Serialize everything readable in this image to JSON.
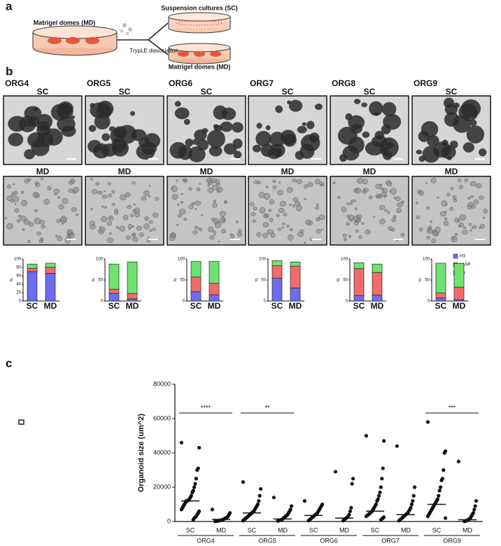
{
  "panel_a": {
    "label": "a",
    "source": "Matrigel domes (MD)",
    "step": "TrypLE dissociation",
    "targets": [
      "Suspension cultures (SC)",
      "Matrigel domes (MD)"
    ]
  },
  "panel_b": {
    "label": "b",
    "organoids": [
      {
        "name": "ORG4",
        "images": [
          "SC",
          "MD"
        ],
        "chart": {
          "type": "bar",
          "stacked": true,
          "ylabel": "%",
          "categories": [
            "SC",
            "MD"
          ],
          "ylim": [
            0,
            100
          ],
          "yticks": [
            0,
            20,
            40,
            60,
            80,
            100
          ],
          "series": [
            {
              "name": "HS",
              "color": "#6f6cf2",
              "values": [
                70,
                66
              ]
            },
            {
              "name": "LASP",
              "color": "#f26b6b",
              "values": [
                8,
                14
              ]
            },
            {
              "name": "BA",
              "color": "#6fe36f",
              "values": [
                10,
                10
              ]
            }
          ]
        }
      },
      {
        "name": "ORG5",
        "images": [
          "SC",
          "MD"
        ],
        "chart": {
          "type": "bar",
          "stacked": true,
          "ylabel": "%",
          "categories": [
            "SC",
            "MD"
          ],
          "ylim": [
            0,
            100
          ],
          "yticks": [
            0,
            50,
            100
          ],
          "series": [
            {
              "name": "HS",
              "color": "#6f6cf2",
              "values": [
                18,
                5
              ]
            },
            {
              "name": "LASP",
              "color": "#f26b6b",
              "values": [
                10,
                13
              ]
            },
            {
              "name": "BA",
              "color": "#6fe36f",
              "values": [
                60,
                75
              ]
            }
          ]
        }
      },
      {
        "name": "ORG6",
        "images": [
          "SC",
          "MD"
        ],
        "chart": {
          "type": "bar",
          "stacked": true,
          "ylabel": "%",
          "categories": [
            "SC",
            "MD"
          ],
          "ylim": [
            0,
            100
          ],
          "yticks": [
            0,
            50,
            100
          ],
          "series": [
            {
              "name": "HS",
              "color": "#6f6cf2",
              "values": [
                22,
                15
              ]
            },
            {
              "name": "LASP",
              "color": "#f26b6b",
              "values": [
                35,
                27
              ]
            },
            {
              "name": "BA",
              "color": "#6fe36f",
              "values": [
                37,
                52
              ]
            }
          ]
        }
      },
      {
        "name": "ORG7",
        "images": [
          "SC",
          "MD"
        ],
        "chart": {
          "type": "bar",
          "stacked": true,
          "ylabel": "%",
          "categories": [
            "SC",
            "MD"
          ],
          "ylim": [
            0,
            100
          ],
          "yticks": [
            0,
            50,
            100
          ],
          "series": [
            {
              "name": "HS",
              "color": "#6f6cf2",
              "values": [
                54,
                31
              ]
            },
            {
              "name": "LASP",
              "color": "#f26b6b",
              "values": [
                30,
                52
              ]
            },
            {
              "name": "BA",
              "color": "#6fe36f",
              "values": [
                12,
                10
              ]
            }
          ]
        }
      },
      {
        "name": "ORG8",
        "images": [
          "SC",
          "MD"
        ],
        "chart": {
          "type": "bar",
          "stacked": true,
          "ylabel": "%",
          "categories": [
            "SC",
            "MD"
          ],
          "ylim": [
            0,
            100
          ],
          "yticks": [
            0,
            50,
            100
          ],
          "legend": "right",
          "series": [
            {
              "name": "HS",
              "color": "#6f6cf2",
              "values": [
                13,
                14
              ]
            },
            {
              "name": "LASP",
              "color": "#f26b6b",
              "values": [
                64,
                54
              ]
            },
            {
              "name": "BA",
              "color": "#6fe36f",
              "values": [
                14,
                20
              ]
            }
          ]
        }
      },
      {
        "name": "ORG9",
        "images": [
          "SC",
          "MD"
        ],
        "chart": {
          "type": "bar",
          "stacked": true,
          "ylabel": "%",
          "categories": [
            "SC",
            "MD"
          ],
          "ylim": [
            0,
            100
          ],
          "yticks": [
            0,
            50,
            100
          ],
          "series": [
            {
              "name": "HS",
              "color": "#6f6cf2",
              "values": [
                7,
                3
              ]
            },
            {
              "name": "LASP",
              "color": "#f26b6b",
              "values": [
                12,
                30
              ]
            },
            {
              "name": "BA",
              "color": "#6fe36f",
              "values": [
                71,
                56
              ]
            }
          ]
        }
      }
    ]
  },
  "panel_c": {
    "label": "c",
    "chart_data": {
      "type": "dotplot",
      "ylabel": "Organoid size (um^2)",
      "ylim": [
        0,
        80000
      ],
      "yticks": [
        0,
        20000,
        40000,
        60000,
        80000
      ],
      "categories": [
        "SC",
        "MD",
        "SC",
        "MD",
        "SC",
        "MD",
        "SC",
        "MD",
        "SC",
        "MD"
      ],
      "groups": [
        {
          "name": "ORG4",
          "significance": "****"
        },
        {
          "name": "ORG5",
          "significance": "**"
        },
        {
          "name": "ORG6"
        },
        {
          "name": "ORG7"
        },
        {
          "name": "ORG9",
          "significance": "***"
        }
      ],
      "color": "#111111",
      "medians": [
        12000,
        1200,
        5000,
        1500,
        3500,
        2000,
        6000,
        4000,
        10000,
        1000
      ],
      "points": [
        [
          46000,
          43000,
          31000,
          30000,
          25000,
          22000,
          20000,
          18000,
          17000,
          15000,
          14000,
          13000,
          12500,
          12000,
          12000,
          11000,
          10000,
          9000,
          8000,
          7000,
          6000,
          5000,
          4000,
          3000,
          2500,
          2000,
          1000
        ],
        [
          7000,
          5000,
          4000,
          3000,
          2500,
          2000,
          1800,
          1500,
          1200,
          1000,
          800,
          600,
          500,
          400,
          300,
          200,
          100
        ],
        [
          23000,
          19000,
          15000,
          12000,
          10000,
          9000,
          8000,
          7000,
          6000,
          5500,
          5000,
          4500,
          4000,
          3500,
          3000,
          2500,
          2000,
          1500,
          1000,
          500
        ],
        [
          14000,
          9000,
          7000,
          6000,
          5000,
          4000,
          3500,
          3000,
          2500,
          2000,
          1500,
          1200,
          1000,
          800,
          500,
          300
        ],
        [
          12000,
          10000,
          9000,
          8000,
          7000,
          6000,
          5000,
          4500,
          4000,
          3500,
          3000,
          2500,
          2000,
          1500,
          1000,
          500
        ],
        [
          29000,
          25000,
          22000,
          8000,
          6000,
          4000,
          3000,
          2500,
          2000,
          1500,
          1000,
          500
        ],
        [
          50000,
          47000,
          31000,
          25000,
          20000,
          17000,
          15000,
          13000,
          12000,
          10000,
          9000,
          8000,
          7000,
          6000,
          5500,
          5000,
          4500,
          4000,
          3500,
          3000,
          2500,
          2000,
          1500,
          1000
        ],
        [
          44000,
          20000,
          15000,
          12000,
          10000,
          8000,
          7000,
          6000,
          5000,
          4500,
          4000,
          3500,
          3000,
          2500,
          2000,
          1500,
          1000,
          500
        ],
        [
          58000,
          41000,
          40000,
          30000,
          25000,
          24000,
          20000,
          18000,
          15000,
          13000,
          12000,
          11000,
          10000,
          9000,
          8000,
          7000,
          6000,
          5000,
          4000,
          3000,
          2000
        ],
        [
          35000,
          12000,
          9000,
          7000,
          5000,
          4000,
          3000,
          2000,
          1500,
          1000,
          800,
          500,
          300,
          100
        ]
      ]
    }
  }
}
